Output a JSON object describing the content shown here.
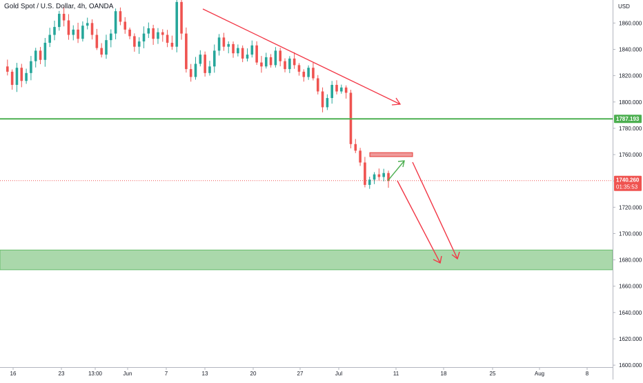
{
  "header": {
    "title": "Gold Spot / U.S. Dollar, 4h, OANDA"
  },
  "chart_data": {
    "type": "candlestick",
    "symbol": "Gold Spot / U.S. Dollar",
    "interval": "4h",
    "source": "OANDA",
    "currency_label": "USD",
    "y_ticks": [
      "1860.000",
      "1840.000",
      "1820.000",
      "1800.000",
      "1780.000",
      "1760.000",
      "1740.000",
      "1720.000",
      "1700.000",
      "1680.000",
      "1660.000",
      "1640.000",
      "1620.000",
      "1600.000"
    ],
    "ylim": [
      1598.5,
      1877.5
    ],
    "x_ticks": [
      "16",
      "23",
      "13:00",
      "Jun",
      "7",
      "13",
      "20",
      "27",
      "Jul",
      "11",
      "18",
      "25",
      "Aug",
      "8"
    ],
    "price_label": {
      "value": "1740.260",
      "countdown": "01:35:53",
      "level": 1740.26,
      "color": "#ef5350"
    },
    "support_line": {
      "value": "1787.193",
      "level": 1787.193,
      "color": "#4caf50"
    },
    "target_zone": {
      "low": 1672.5,
      "high": 1687.5,
      "color": "#a5d6a7"
    },
    "resistance_box": {
      "low": 1758.5,
      "high": 1761.5,
      "color": "#ef9a9a"
    },
    "trendline_color": "#f23645",
    "path_up_color": "#4caf50",
    "path_down_color": "#f23645",
    "candle_up_color": "#26a69a",
    "candle_down_color": "#ef5350",
    "series": [
      {
        "name": "",
        "values": [
          1827,
          1823,
          1813,
          1826,
          1816,
          1822,
          1831,
          1839,
          1832,
          1845,
          1851,
          1857,
          1867,
          1862,
          1851,
          1855,
          1848,
          1858,
          1860,
          1851,
          1841,
          1836,
          1847,
          1852,
          1869,
          1861,
          1855,
          1850,
          1842,
          1846,
          1852,
          1856,
          1848,
          1853,
          1851,
          1845,
          1842,
          1876,
          1852,
          1825,
          1819,
          1829,
          1836,
          1822,
          1827,
          1839,
          1849,
          1842,
          1844,
          1837,
          1841,
          1833,
          1836,
          1843,
          1830,
          1827,
          1834,
          1828,
          1839,
          1831,
          1825,
          1833,
          1828,
          1823,
          1819,
          1826,
          1818,
          1808,
          1796,
          1803,
          1813,
          1808,
          1811,
          1807,
          1768,
          1763,
          1754,
          1737,
          1741,
          1745,
          1743,
          1746,
          1740
        ]
      }
    ]
  }
}
